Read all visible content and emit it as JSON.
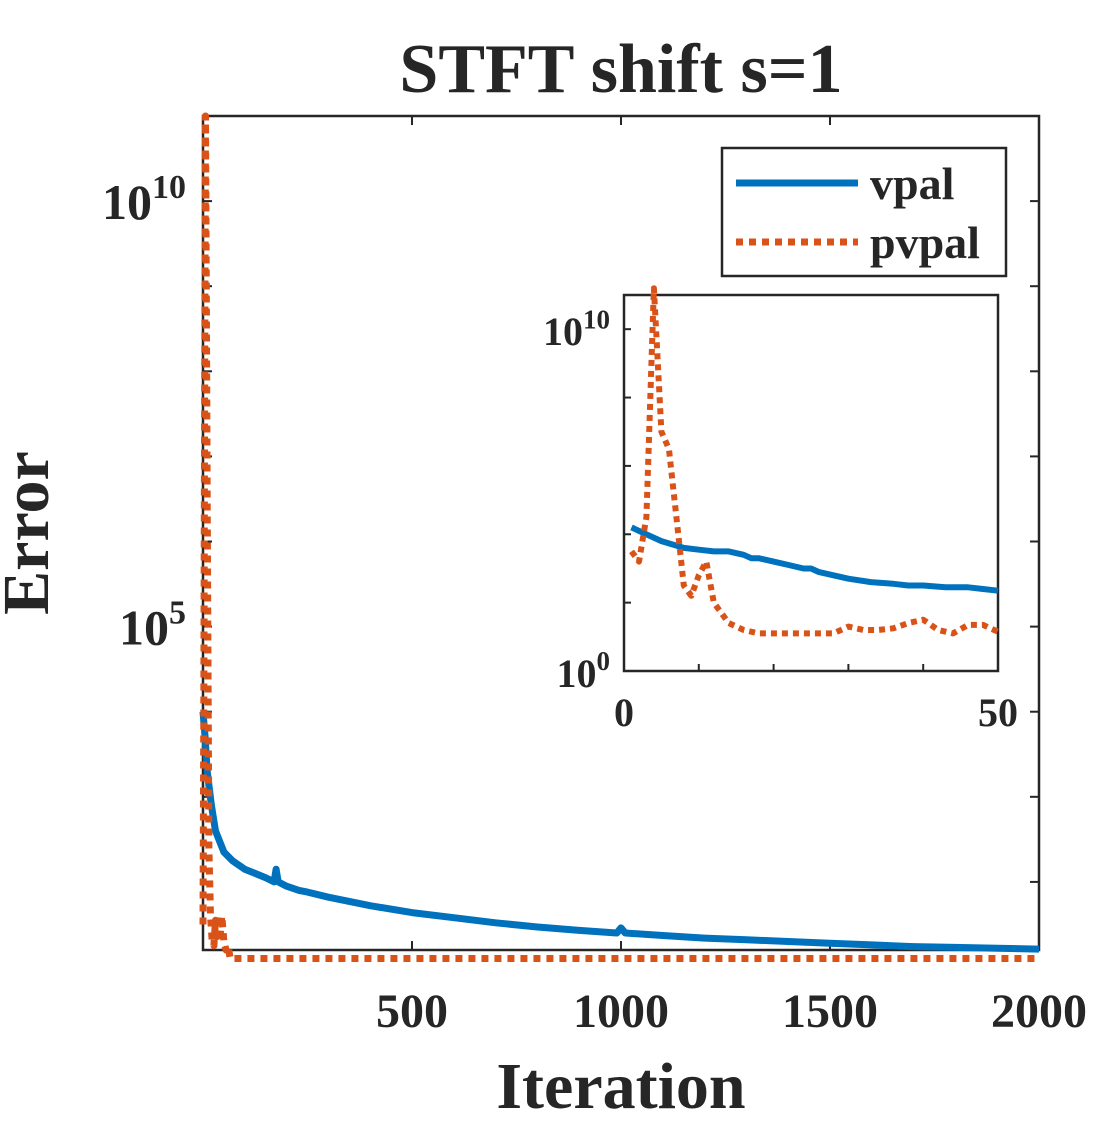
{
  "chart_data": [
    {
      "panel": "main",
      "type": "line",
      "title": "STFT shift s=1",
      "xlabel": "Iteration",
      "ylabel": "Error",
      "xlim": [
        0,
        2000
      ],
      "ylim_log10": [
        1.2,
        11.0
      ],
      "yscale": "log",
      "grid": false,
      "legend_position": "top-right",
      "x_ticks": [
        500,
        1000,
        1500,
        2000
      ],
      "y_ticks": [
        {
          "exp": 5,
          "base": "10",
          "sup": "5"
        },
        {
          "exp": 10,
          "base": "10",
          "sup": "10"
        }
      ],
      "series": [
        {
          "name": "vpal",
          "color": "#0072BD",
          "style": "solid",
          "x": [
            0,
            5,
            10,
            20,
            30,
            50,
            70,
            100,
            150,
            170,
            175,
            180,
            200,
            230,
            250,
            300,
            400,
            500,
            600,
            700,
            800,
            900,
            990,
            1000,
            1010,
            1100,
            1200,
            1300,
            1400,
            1500,
            1600,
            1700,
            1800,
            1900,
            2000
          ],
          "log10_y": [
            4.0,
            3.7,
            3.3,
            2.9,
            2.6,
            2.35,
            2.25,
            2.15,
            2.05,
            2.0,
            2.15,
            2.0,
            1.95,
            1.9,
            1.88,
            1.82,
            1.72,
            1.64,
            1.58,
            1.52,
            1.47,
            1.43,
            1.4,
            1.46,
            1.4,
            1.37,
            1.34,
            1.32,
            1.3,
            1.28,
            1.26,
            1.24,
            1.23,
            1.22,
            1.21
          ]
        },
        {
          "name": "pvpal",
          "color": "#D95319",
          "style": "dotted",
          "x": [
            0,
            2,
            4,
            6,
            8,
            10,
            14,
            18,
            22,
            26,
            30,
            35,
            40,
            45,
            50,
            55,
            60,
            65,
            70,
            100,
            200,
            500,
            1000,
            1500,
            2000
          ],
          "log10_y": [
            1.5,
            4.0,
            8.0,
            11.0,
            9.0,
            6.5,
            2.4,
            1.6,
            1.3,
            1.25,
            1.55,
            1.35,
            1.3,
            1.6,
            1.3,
            1.2,
            1.25,
            1.1,
            1.1,
            1.1,
            1.1,
            1.1,
            1.1,
            1.1,
            1.1
          ]
        }
      ]
    },
    {
      "panel": "inset",
      "type": "line",
      "xlim": [
        0,
        50
      ],
      "ylim_log10": [
        0,
        11.0
      ],
      "yscale": "log",
      "x_ticks": [
        0,
        50
      ],
      "y_ticks": [
        {
          "exp": 0,
          "base": "10",
          "sup": "0"
        },
        {
          "exp": 10,
          "base": "10",
          "sup": "10"
        }
      ],
      "series": [
        {
          "name": "vpal",
          "color": "#0072BD",
          "style": "solid",
          "x": [
            1,
            3,
            5,
            8,
            10,
            12,
            14,
            16,
            17,
            18,
            20,
            22,
            24,
            25,
            26,
            28,
            30,
            33,
            36,
            38,
            40,
            43,
            46,
            48,
            50
          ],
          "log10_y": [
            4.2,
            4.0,
            3.8,
            3.6,
            3.55,
            3.5,
            3.5,
            3.4,
            3.3,
            3.3,
            3.2,
            3.1,
            3.0,
            3.0,
            2.9,
            2.8,
            2.7,
            2.6,
            2.55,
            2.5,
            2.5,
            2.45,
            2.45,
            2.4,
            2.35
          ]
        },
        {
          "name": "pvpal",
          "color": "#D95319",
          "style": "dotted",
          "x": [
            1,
            2,
            3,
            4,
            5,
            6,
            7,
            8,
            9,
            10,
            11,
            12,
            14,
            16,
            18,
            20,
            22,
            24,
            26,
            28,
            30,
            32,
            34,
            36,
            38,
            40,
            42,
            44,
            46,
            48,
            50
          ],
          "log10_y": [
            3.5,
            3.2,
            4.5,
            11.2,
            7.0,
            6.5,
            4.5,
            2.5,
            2.2,
            2.8,
            3.2,
            2.0,
            1.4,
            1.2,
            1.1,
            1.1,
            1.1,
            1.1,
            1.1,
            1.1,
            1.3,
            1.2,
            1.2,
            1.25,
            1.4,
            1.5,
            1.2,
            1.1,
            1.35,
            1.35,
            1.15
          ]
        }
      ]
    }
  ]
}
